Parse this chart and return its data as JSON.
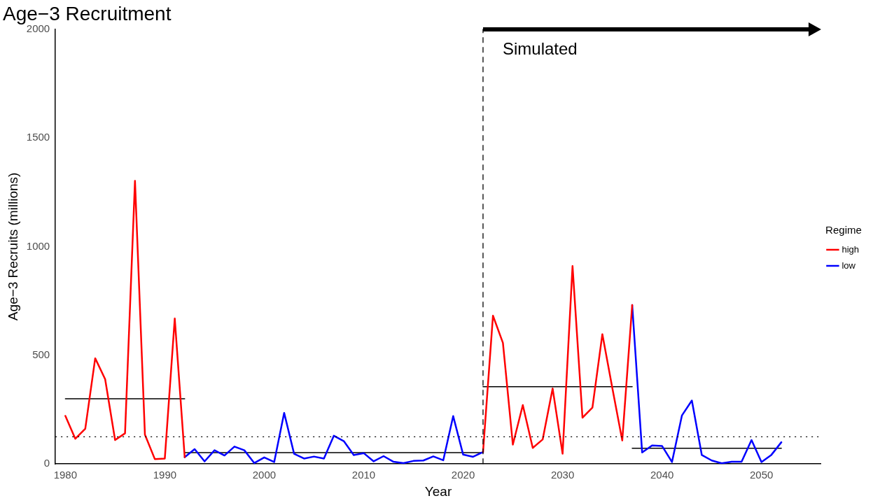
{
  "chart_data": {
    "type": "line",
    "title": "Age−3 Recruitment",
    "xlabel": "Year",
    "ylabel": "Age−3 Recruits (millions)",
    "legend_title": "Regime",
    "legend": "right",
    "grid": false,
    "marker": "none",
    "line_style": "solid",
    "x": [
      1980,
      1981,
      1982,
      1983,
      1984,
      1985,
      1986,
      1987,
      1988,
      1989,
      1990,
      1991,
      1992,
      1993,
      1994,
      1995,
      1996,
      1997,
      1998,
      1999,
      2000,
      2001,
      2002,
      2003,
      2004,
      2005,
      2006,
      2007,
      2008,
      2009,
      2010,
      2011,
      2012,
      2013,
      2014,
      2015,
      2016,
      2017,
      2018,
      2019,
      2020,
      2021,
      2022,
      2023,
      2024,
      2025,
      2026,
      2027,
      2028,
      2029,
      2030,
      2031,
      2032,
      2033,
      2034,
      2035,
      2036,
      2037,
      2038,
      2039,
      2040,
      2041,
      2042,
      2043,
      2044,
      2045,
      2046,
      2047,
      2048,
      2049,
      2050,
      2051,
      2052
    ],
    "series": [
      {
        "name": "high",
        "color": "#ff0000",
        "values": [
          221,
          116,
          162,
          486,
          390,
          110,
          141,
          1302,
          135,
          22,
          25,
          669,
          31,
          null,
          null,
          null,
          null,
          null,
          null,
          null,
          null,
          null,
          null,
          null,
          null,
          null,
          null,
          null,
          null,
          null,
          null,
          null,
          null,
          null,
          null,
          null,
          null,
          null,
          null,
          null,
          null,
          null,
          55,
          682,
          557,
          89,
          271,
          74,
          113,
          347,
          47,
          910,
          213,
          259,
          597,
          350,
          108,
          731,
          null,
          null,
          null,
          null,
          null,
          null,
          null,
          null,
          null,
          null,
          null,
          null,
          null,
          null,
          null
        ]
      },
      {
        "name": "low",
        "color": "#0000ff",
        "values": [
          null,
          null,
          null,
          null,
          null,
          null,
          null,
          null,
          null,
          null,
          null,
          null,
          31,
          68,
          12,
          63,
          39,
          80,
          63,
          4,
          30,
          9,
          235,
          47,
          25,
          34,
          25,
          130,
          105,
          41,
          50,
          12,
          36,
          10,
          4,
          14,
          16,
          35,
          17,
          220,
          43,
          33,
          55,
          null,
          null,
          null,
          null,
          null,
          null,
          null,
          null,
          null,
          null,
          null,
          null,
          null,
          null,
          731,
          53,
          85,
          83,
          9,
          223,
          292,
          41,
          16,
          3,
          10,
          10,
          110,
          9,
          42,
          100
        ]
      },
      {
        "type": "line",
        "color": "#000000",
        "x": [
          1980,
          1992
        ],
        "values": [
          300,
          300
        ]
      },
      {
        "type": "line",
        "color": "#000000",
        "x": [
          1992,
          2022
        ],
        "values": [
          52,
          52
        ]
      },
      {
        "type": "line",
        "color": "#000000",
        "x": [
          2022,
          2037
        ],
        "values": [
          355,
          355
        ]
      },
      {
        "type": "line",
        "color": "#000000",
        "x": [
          2037,
          2052
        ],
        "values": [
          72,
          72
        ]
      }
    ],
    "xlim": [
      1979,
      2056
    ],
    "xticks": [
      1980,
      1990,
      2000,
      2010,
      2020,
      2030,
      2040,
      2050
    ],
    "ylim": [
      0,
      2000
    ],
    "yticks": [
      0,
      500,
      1000,
      1500,
      2000
    ],
    "ref_lines": [
      {
        "axis": "y",
        "value": 125,
        "color": "#000000",
        "line_style": "dotted"
      },
      {
        "axis": "x",
        "value": 2022,
        "color": "#000000",
        "line_style": "dashed"
      }
    ],
    "annotations": [
      "Simulated"
    ]
  }
}
